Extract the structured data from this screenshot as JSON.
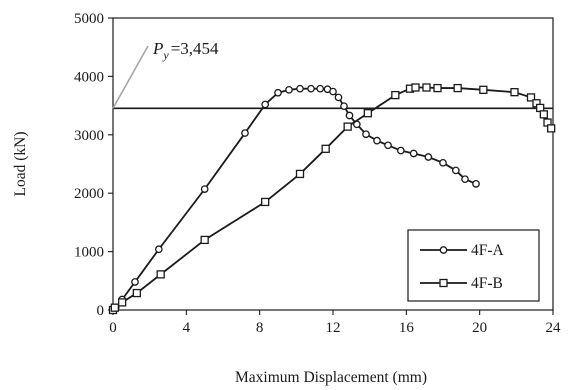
{
  "chart_data": {
    "type": "line",
    "xlabel": "Maximum Displacement (mm)",
    "ylabel": "Load (kN)",
    "xlim": [
      0,
      24
    ],
    "ylim": [
      0,
      5000
    ],
    "xticks": [
      0,
      4,
      8,
      12,
      16,
      20,
      24
    ],
    "yticks": [
      0,
      1000,
      2000,
      3000,
      4000,
      5000
    ],
    "x_tick_labels": [
      "0",
      "4",
      "8",
      "12",
      "16",
      "20",
      "24"
    ],
    "y_tick_labels": [
      "0",
      "1000",
      "2000",
      "3000",
      "4000",
      "5000"
    ],
    "grid": false,
    "legend_position": "bottom-right",
    "series": [
      {
        "name": "4F-A",
        "marker": "circle",
        "x": [
          0,
          0.15,
          0.5,
          1.2,
          2.5,
          5.0,
          7.2,
          8.3,
          9.0,
          9.6,
          10.2,
          10.8,
          11.3,
          11.7,
          12.0,
          12.3,
          12.6,
          12.9,
          13.3,
          13.8,
          14.4,
          15.0,
          15.7,
          16.4,
          17.2,
          18.0,
          18.7,
          19.2,
          19.8
        ],
        "y": [
          0,
          40,
          180,
          480,
          1040,
          2070,
          3030,
          3520,
          3720,
          3770,
          3790,
          3790,
          3790,
          3780,
          3740,
          3640,
          3490,
          3330,
          3180,
          3010,
          2900,
          2820,
          2730,
          2680,
          2620,
          2520,
          2390,
          2240,
          2160
        ]
      },
      {
        "name": "4F-B",
        "marker": "square",
        "x": [
          0,
          0.1,
          0.5,
          1.3,
          2.6,
          5.0,
          8.3,
          10.2,
          11.6,
          12.8,
          13.9,
          15.4,
          16.2,
          16.5,
          17.1,
          17.7,
          18.8,
          20.2,
          21.9,
          22.8,
          23.1,
          23.3,
          23.5,
          23.7,
          23.9
        ],
        "y": [
          0,
          40,
          130,
          290,
          610,
          1200,
          1850,
          2330,
          2760,
          3140,
          3370,
          3680,
          3790,
          3810,
          3810,
          3800,
          3800,
          3770,
          3730,
          3640,
          3540,
          3460,
          3350,
          3210,
          3110
        ]
      }
    ],
    "reference_line": {
      "y": 3454,
      "label_symbol": "P",
      "label_subscript": "y",
      "label_value": "=3,454"
    }
  },
  "colors": {
    "line": "#1a1a1a",
    "reference_line": "#1a1a1a",
    "leader_line": "#a6a6a6",
    "marker_fill": "#ffffff",
    "background": "#ffffff"
  }
}
